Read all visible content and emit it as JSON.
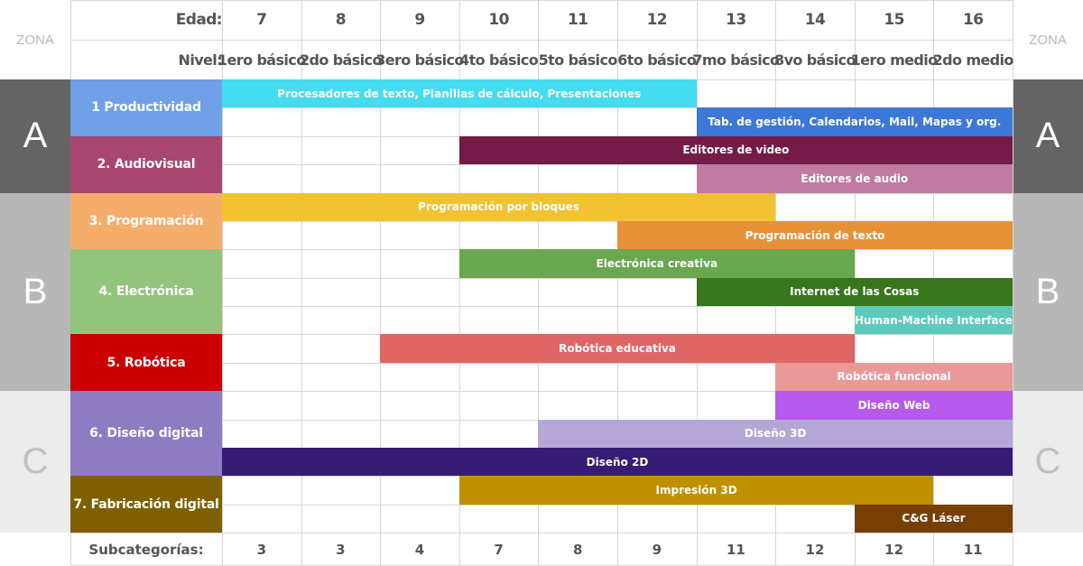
{
  "zone_label": "ZONA",
  "zones": [
    {
      "letter": "A",
      "band": "#646464",
      "text": "#ffffff"
    },
    {
      "letter": "B",
      "band": "#b7b7b7",
      "text": "#ffffff"
    },
    {
      "letter": "C",
      "band": "#ececec",
      "text": "#c0c0c0"
    }
  ],
  "header": {
    "age_label": "Edad:",
    "level_label": "Nivel:",
    "ages": [
      "7",
      "8",
      "9",
      "10",
      "11",
      "12",
      "13",
      "14",
      "15",
      "16"
    ],
    "levels": [
      "1ero básico",
      "2do básico",
      "3ero básico",
      "4to básico",
      "5to básico",
      "6to básico",
      "7mo básico",
      "8vo básico",
      "1ero medio",
      "2do medio"
    ]
  },
  "categories": [
    {
      "label": "1 Productividad",
      "color": "#6fa0e8",
      "rows": 2,
      "zone": 0
    },
    {
      "label": "2. Audiovisual",
      "color": "#a7466f",
      "rows": 2,
      "zone": 0
    },
    {
      "label": "3. Programación",
      "color": "#f5ad6c",
      "rows": 2,
      "zone": 1
    },
    {
      "label": "4. Electrónica",
      "color": "#93c47d",
      "rows": 3,
      "zone": 1
    },
    {
      "label": "5. Robótica",
      "color": "#cc0000",
      "rows": 2,
      "zone": 1
    },
    {
      "label": "6. Diseño digital",
      "color": "#8e7cc3",
      "rows": 3,
      "zone": 2
    },
    {
      "label": "7. Fabricación digital",
      "color": "#7f6000",
      "rows": 2,
      "zone": 2
    }
  ],
  "bars": [
    {
      "label": "Procesadores de texto, Planillas de cálculo, Presentaciones",
      "row": 0,
      "start": 0,
      "end": 5,
      "color": "#44dcef"
    },
    {
      "label": "Tab. de gestión, Calendarios, Mail, Mapas y org.",
      "row": 1,
      "start": 6,
      "end": 9,
      "color": "#3c78d8"
    },
    {
      "label": "Editores de video",
      "row": 2,
      "start": 3,
      "end": 9,
      "color": "#741b47"
    },
    {
      "label": "Editores de audio",
      "row": 3,
      "start": 6,
      "end": 9,
      "color": "#c27ba0"
    },
    {
      "label": "Programación por bloques",
      "row": 4,
      "start": 0,
      "end": 6,
      "color": "#f1c232"
    },
    {
      "label": "Programación de texto",
      "row": 5,
      "start": 5,
      "end": 9,
      "color": "#e69138"
    },
    {
      "label": "Electrónica creativa",
      "row": 6,
      "start": 3,
      "end": 7,
      "color": "#6aa84f"
    },
    {
      "label": "Internet de las Cosas",
      "row": 7,
      "start": 6,
      "end": 9,
      "color": "#38761d"
    },
    {
      "label": "Human-Machine Interface",
      "row": 8,
      "start": 8,
      "end": 9,
      "color": "#5ecabb"
    },
    {
      "label": "Robótica educativa",
      "row": 9,
      "start": 2,
      "end": 7,
      "color": "#e06666"
    },
    {
      "label": "Robótica funcional",
      "row": 10,
      "start": 7,
      "end": 9,
      "color": "#ea9999"
    },
    {
      "label": "Diseño Web",
      "row": 11,
      "start": 7,
      "end": 9,
      "color": "#b55aed"
    },
    {
      "label": "Diseño 3D",
      "row": 12,
      "start": 4,
      "end": 9,
      "color": "#b4a7d6"
    },
    {
      "label": "Diseño 2D",
      "row": 13,
      "start": 0,
      "end": 9,
      "color": "#351c75"
    },
    {
      "label": "Impresión 3D",
      "row": 14,
      "start": 3,
      "end": 8,
      "color": "#bf9000"
    },
    {
      "label": "C&G Láser",
      "row": 15,
      "start": 8,
      "end": 9,
      "color": "#783f04"
    }
  ],
  "footer": {
    "label": "Subcategorías:",
    "counts": [
      "3",
      "3",
      "4",
      "7",
      "8",
      "9",
      "11",
      "12",
      "12",
      "11"
    ]
  }
}
